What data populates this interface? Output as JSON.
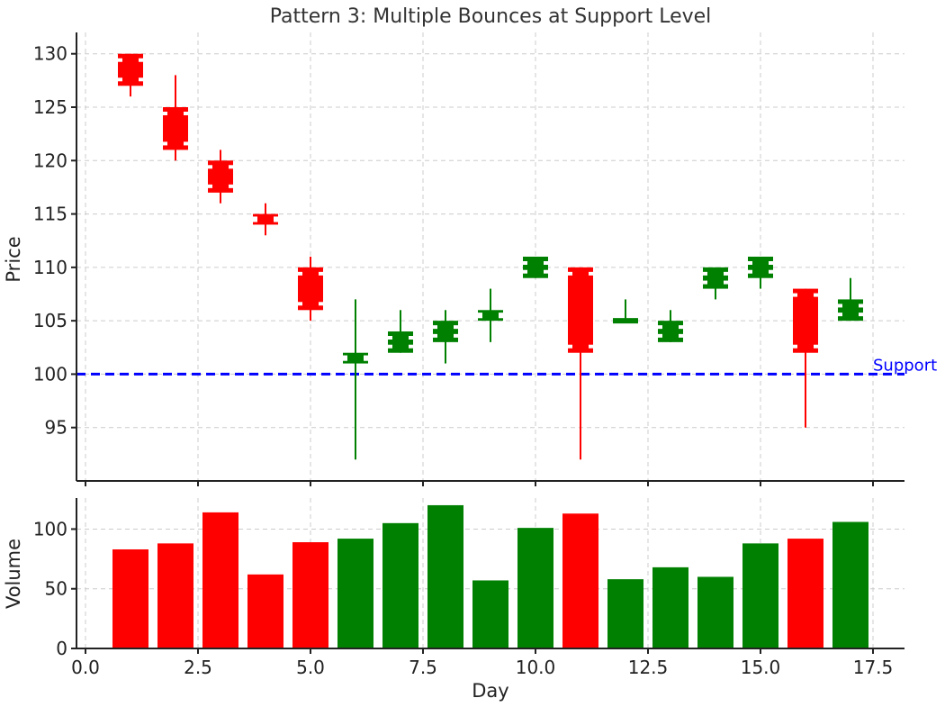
{
  "chart_data": {
    "type": "candlestick",
    "title": "Pattern 3: Multiple Bounces at Support Level",
    "colors": {
      "up": "#008000",
      "down": "#ff0000",
      "support": "#0000ff",
      "grid": "#cccccc"
    },
    "x": [
      1,
      2,
      3,
      4,
      5,
      6,
      7,
      8,
      9,
      10,
      11,
      12,
      13,
      14,
      15,
      16,
      17
    ],
    "open": [
      130,
      125,
      120,
      115,
      110,
      101,
      102,
      103,
      105,
      109,
      110,
      105,
      103,
      108,
      109,
      108,
      105
    ],
    "high": [
      130,
      128,
      121,
      116,
      111,
      107,
      106,
      106,
      108,
      111,
      110,
      107,
      106,
      110,
      111,
      108,
      109
    ],
    "low": [
      126,
      120,
      116,
      113,
      105,
      92,
      102,
      101,
      103,
      109,
      92,
      105,
      103,
      107,
      108,
      95,
      105
    ],
    "close": [
      127,
      121,
      117,
      114,
      106,
      102,
      104,
      105,
      106,
      111,
      102,
      105,
      105,
      110,
      111,
      102,
      107
    ],
    "volume": [
      83,
      88,
      114,
      62,
      89,
      92,
      105,
      120,
      57,
      101,
      113,
      58,
      68,
      60,
      88,
      92,
      106
    ],
    "support": {
      "level": 100,
      "label": "Support"
    },
    "price_panel": {
      "ylabel": "Price",
      "ylim": [
        90,
        132
      ],
      "yticks": [
        95,
        100,
        105,
        110,
        115,
        120,
        125,
        130
      ]
    },
    "volume_panel": {
      "ylabel": "Volume",
      "ylim": [
        0,
        126
      ],
      "yticks": [
        0,
        50,
        100
      ]
    },
    "xlabel": "Day",
    "xlim": [
      -0.2,
      18.2
    ],
    "xticks": [
      "0.0",
      "2.5",
      "5.0",
      "7.5",
      "10.0",
      "12.5",
      "15.0",
      "17.5"
    ],
    "grid": true
  }
}
